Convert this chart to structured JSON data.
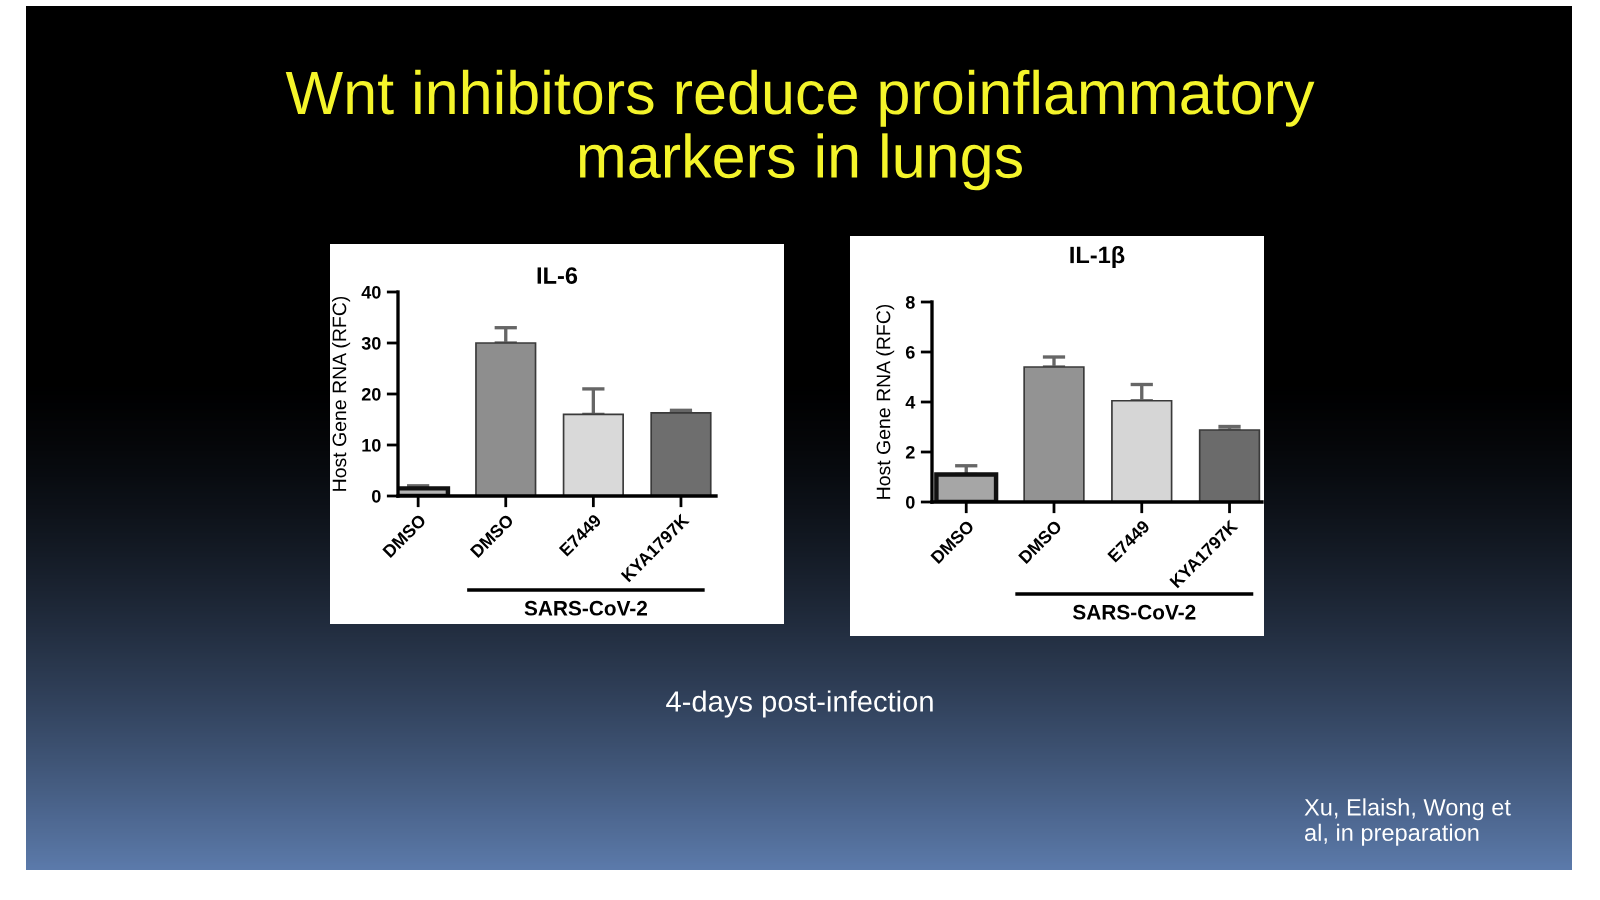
{
  "chart_data": [
    {
      "type": "bar",
      "title": "IL-6",
      "ylabel": "Host Gene RNA (RFC)",
      "categories": [
        "DMSO",
        "DMSO",
        "E7449",
        "KYA1797K"
      ],
      "values": [
        1.5,
        30,
        16,
        16.3
      ],
      "colors": [
        "#b4b4b4",
        "#8e8e8e",
        "#d9d9d9",
        "#6e6e6e"
      ],
      "errors": [
        [
          1.5,
          2
        ],
        [
          30,
          33
        ],
        [
          16,
          21
        ],
        [
          16.3,
          16.8
        ]
      ],
      "ylim": [
        0,
        40
      ],
      "yticks": [
        0,
        10,
        20,
        30,
        40
      ],
      "annotations": [
        "SARS-CoV-2",
        "Wnt inhibitors reduce proinflammatory\nmarkers in lungs",
        "4-days post-infection",
        "Xu, Elaish, Wong et\nal, in preparation"
      ]
    },
    {
      "type": "bar",
      "title": "IL-1β",
      "ylabel": "Host Gene RNA (RFC)",
      "categories": [
        "DMSO",
        "DMSO",
        "E7449",
        "KYA1797K"
      ],
      "values": [
        1.1,
        5.4,
        4.05,
        2.88
      ],
      "colors": [
        "#a6a6a6",
        "#939393",
        "#d6d6d6",
        "#6b6b6b"
      ],
      "errors": [
        [
          1.1,
          1.45
        ],
        [
          5.4,
          5.8
        ],
        [
          4.05,
          4.7
        ],
        [
          2.88,
          3.02
        ]
      ],
      "ylim": [
        0,
        8
      ],
      "yticks": [
        0,
        2,
        4,
        6,
        8
      ],
      "annotations": [
        "SARS-CoV-2"
      ]
    }
  ]
}
